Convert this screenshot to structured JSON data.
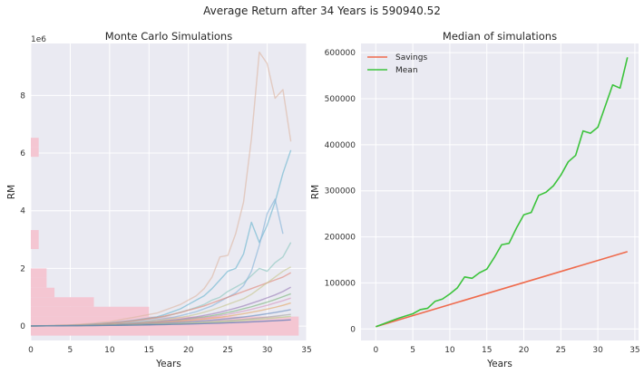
{
  "figure": {
    "suptitle": "Average Return after 34 Years is 590940.52",
    "background": "#ffffff",
    "axes_bg": "#eaeaf2",
    "grid_color": "#ffffff"
  },
  "chart_data": [
    {
      "type": "line",
      "title": "Monte Carlo Simulations",
      "xlabel": "Years",
      "ylabel": "RM",
      "y_offset_label": "1e6",
      "xlim": [
        0,
        35
      ],
      "ylim": [
        -0.5,
        9.8
      ],
      "y_unit_note": "values in millions of RM",
      "xticks": [
        0,
        5,
        10,
        15,
        20,
        25,
        30,
        35
      ],
      "yticks": [
        0,
        2,
        4,
        6,
        8
      ],
      "grid": true,
      "histogram": {
        "orientation": "horizontal",
        "color": "#f4c6d2",
        "bins": [
          {
            "y0": -0.33,
            "y1": 0.33,
            "count": 34
          },
          {
            "y0": 0.33,
            "y1": 0.67,
            "count": 15
          },
          {
            "y0": 0.67,
            "y1": 1.0,
            "count": 8
          },
          {
            "y0": 1.0,
            "y1": 1.33,
            "count": 3
          },
          {
            "y0": 1.33,
            "y1": 1.67,
            "count": 2
          },
          {
            "y0": 1.67,
            "y1": 2.0,
            "count": 2
          },
          {
            "y0": 2.67,
            "y1": 3.0,
            "count": 1
          },
          {
            "y0": 3.0,
            "y1": 3.33,
            "count": 1
          },
          {
            "y0": 5.87,
            "y1": 6.2,
            "count": 1
          },
          {
            "y0": 6.2,
            "y1": 6.53,
            "count": 1
          }
        ]
      },
      "series": [
        {
          "color": "#ddb9a6",
          "values": [
            0.005,
            0.01,
            0.015,
            0.02,
            0.03,
            0.04,
            0.06,
            0.08,
            0.1,
            0.13,
            0.15,
            0.2,
            0.25,
            0.3,
            0.35,
            0.4,
            0.45,
            0.55,
            0.65,
            0.75,
            0.9,
            1.05,
            1.3,
            1.7,
            2.4,
            2.45,
            3.2,
            4.3,
            6.5,
            9.5,
            9.1,
            7.9,
            8.2,
            6.4,
            0
          ]
        },
        {
          "color": "#6fb7cf",
          "values": [
            0.005,
            0.008,
            0.01,
            0.015,
            0.02,
            0.03,
            0.04,
            0.05,
            0.07,
            0.09,
            0.11,
            0.14,
            0.17,
            0.2,
            0.24,
            0.28,
            0.32,
            0.4,
            0.5,
            0.6,
            0.75,
            0.9,
            1.05,
            1.3,
            1.6,
            1.9,
            2.0,
            2.5,
            3.6,
            2.9,
            3.5,
            4.3,
            5.3,
            6.1,
            0
          ]
        },
        {
          "color": "#8fc7c0",
          "values": [
            0.005,
            0.008,
            0.01,
            0.014,
            0.018,
            0.024,
            0.03,
            0.04,
            0.05,
            0.07,
            0.09,
            0.11,
            0.14,
            0.17,
            0.2,
            0.24,
            0.28,
            0.33,
            0.4,
            0.48,
            0.56,
            0.65,
            0.75,
            0.9,
            1.0,
            1.2,
            1.35,
            1.5,
            1.75,
            2.0,
            1.9,
            2.2,
            2.4,
            2.9,
            0
          ]
        },
        {
          "color": "#88b6d8",
          "values": [
            0.005,
            0.008,
            0.01,
            0.013,
            0.017,
            0.022,
            0.028,
            0.035,
            0.045,
            0.055,
            0.07,
            0.085,
            0.1,
            0.12,
            0.15,
            0.18,
            0.22,
            0.26,
            0.3,
            0.36,
            0.43,
            0.5,
            0.6,
            0.7,
            0.85,
            1.0,
            1.15,
            1.4,
            1.9,
            2.8,
            3.9,
            4.4,
            3.2,
            0,
            0
          ]
        },
        {
          "color": "#e08b7d",
          "values": [
            0.005,
            0.008,
            0.012,
            0.016,
            0.022,
            0.03,
            0.04,
            0.05,
            0.06,
            0.08,
            0.1,
            0.12,
            0.15,
            0.18,
            0.22,
            0.26,
            0.3,
            0.35,
            0.41,
            0.47,
            0.55,
            0.62,
            0.7,
            0.8,
            0.9,
            1.0,
            1.1,
            1.2,
            1.3,
            1.4,
            1.5,
            1.6,
            1.7,
            1.85,
            0
          ]
        },
        {
          "color": "#c7c794",
          "values": [
            0.005,
            0.007,
            0.01,
            0.013,
            0.017,
            0.022,
            0.028,
            0.035,
            0.043,
            0.052,
            0.062,
            0.075,
            0.09,
            0.11,
            0.13,
            0.16,
            0.19,
            0.22,
            0.26,
            0.3,
            0.35,
            0.41,
            0.48,
            0.56,
            0.65,
            0.75,
            0.85,
            0.95,
            1.1,
            1.3,
            1.5,
            1.7,
            1.9,
            2.05,
            0
          ]
        },
        {
          "color": "#9b7fb8",
          "values": [
            0.005,
            0.007,
            0.009,
            0.012,
            0.016,
            0.02,
            0.025,
            0.03,
            0.037,
            0.045,
            0.055,
            0.066,
            0.08,
            0.095,
            0.11,
            0.13,
            0.15,
            0.18,
            0.21,
            0.24,
            0.28,
            0.32,
            0.37,
            0.42,
            0.48,
            0.55,
            0.62,
            0.7,
            0.79,
            0.88,
            0.98,
            1.08,
            1.2,
            1.35,
            0
          ]
        },
        {
          "color": "#7fb77f",
          "values": [
            0.005,
            0.007,
            0.009,
            0.012,
            0.015,
            0.019,
            0.024,
            0.029,
            0.035,
            0.042,
            0.05,
            0.06,
            0.07,
            0.083,
            0.098,
            0.115,
            0.135,
            0.157,
            0.18,
            0.21,
            0.24,
            0.28,
            0.32,
            0.36,
            0.41,
            0.47,
            0.53,
            0.6,
            0.67,
            0.75,
            0.83,
            0.92,
            1.02,
            1.12,
            0
          ]
        },
        {
          "color": "#d59ac0",
          "values": [
            0.005,
            0.007,
            0.009,
            0.011,
            0.014,
            0.018,
            0.022,
            0.027,
            0.033,
            0.04,
            0.048,
            0.057,
            0.067,
            0.079,
            0.093,
            0.108,
            0.125,
            0.145,
            0.167,
            0.19,
            0.22,
            0.25,
            0.28,
            0.32,
            0.36,
            0.41,
            0.46,
            0.52,
            0.58,
            0.65,
            0.72,
            0.8,
            0.88,
            0.97,
            0
          ]
        },
        {
          "color": "#e3a96b",
          "values": [
            0.005,
            0.007,
            0.009,
            0.011,
            0.014,
            0.017,
            0.021,
            0.025,
            0.03,
            0.036,
            0.043,
            0.051,
            0.06,
            0.07,
            0.082,
            0.095,
            0.11,
            0.127,
            0.146,
            0.167,
            0.19,
            0.215,
            0.243,
            0.274,
            0.308,
            0.345,
            0.386,
            0.43,
            0.48,
            0.53,
            0.59,
            0.65,
            0.72,
            0.8,
            0
          ]
        },
        {
          "color": "#6f8fc0",
          "values": [
            0.005,
            0.006,
            0.008,
            0.01,
            0.012,
            0.015,
            0.018,
            0.022,
            0.026,
            0.031,
            0.037,
            0.043,
            0.05,
            0.058,
            0.067,
            0.077,
            0.088,
            0.1,
            0.114,
            0.129,
            0.146,
            0.164,
            0.184,
            0.206,
            0.23,
            0.256,
            0.285,
            0.316,
            0.35,
            0.387,
            0.427,
            0.47,
            0.52,
            0.57,
            0
          ]
        },
        {
          "color": "#a9a9a9",
          "values": [
            0.005,
            0.006,
            0.008,
            0.009,
            0.011,
            0.013,
            0.016,
            0.019,
            0.022,
            0.026,
            0.03,
            0.035,
            0.04,
            0.046,
            0.053,
            0.06,
            0.068,
            0.077,
            0.087,
            0.098,
            0.11,
            0.123,
            0.138,
            0.154,
            0.171,
            0.19,
            0.21,
            0.232,
            0.256,
            0.282,
            0.31,
            0.34,
            0.372,
            0.406,
            0
          ]
        },
        {
          "color": "#b0d690",
          "values": [
            0.005,
            0.006,
            0.007,
            0.009,
            0.011,
            0.013,
            0.015,
            0.018,
            0.021,
            0.024,
            0.028,
            0.032,
            0.036,
            0.041,
            0.047,
            0.053,
            0.06,
            0.067,
            0.075,
            0.084,
            0.094,
            0.105,
            0.117,
            0.13,
            0.144,
            0.16,
            0.177,
            0.195,
            0.215,
            0.236,
            0.259,
            0.284,
            0.31,
            0.338,
            0
          ]
        },
        {
          "color": "#4a6fb5",
          "values": [
            0.005,
            0.006,
            0.007,
            0.008,
            0.01,
            0.011,
            0.013,
            0.015,
            0.018,
            0.02,
            0.023,
            0.026,
            0.03,
            0.033,
            0.037,
            0.042,
            0.047,
            0.052,
            0.058,
            0.064,
            0.071,
            0.078,
            0.086,
            0.094,
            0.103,
            0.113,
            0.123,
            0.134,
            0.146,
            0.159,
            0.172,
            0.186,
            0.201,
            0.217,
            0
          ]
        }
      ]
    },
    {
      "type": "line",
      "title": "Median of simulations",
      "xlabel": "Years",
      "ylabel": "RM",
      "xlim": [
        -2,
        35.5
      ],
      "ylim": [
        -25000,
        620000
      ],
      "xticks": [
        0,
        5,
        10,
        15,
        20,
        25,
        30,
        35
      ],
      "yticks": [
        0,
        100000,
        200000,
        300000,
        400000,
        500000,
        600000
      ],
      "grid": true,
      "legend": {
        "position": "top-left"
      },
      "series": [
        {
          "name": "Savings",
          "color": "#ef6a4c",
          "x": [
            0,
            34
          ],
          "values": [
            5000,
            168000
          ]
        },
        {
          "name": "Mean",
          "color": "#3cc33c",
          "x": [
            0,
            1,
            2,
            3,
            4,
            5,
            6,
            7,
            8,
            9,
            10,
            11,
            12,
            13,
            14,
            15,
            16,
            17,
            18,
            19,
            20,
            21,
            22,
            23,
            24,
            25,
            26,
            27,
            28,
            29,
            30,
            31,
            32,
            33,
            34
          ],
          "values": [
            5000,
            11000,
            17000,
            23000,
            28000,
            33000,
            42000,
            45000,
            60000,
            65000,
            76000,
            89000,
            113000,
            110000,
            122000,
            130000,
            155000,
            183000,
            186000,
            219000,
            248000,
            253000,
            290000,
            297000,
            311000,
            334000,
            363000,
            377000,
            430000,
            425000,
            438000,
            484000,
            530000,
            523000,
            590000
          ]
        }
      ]
    }
  ]
}
